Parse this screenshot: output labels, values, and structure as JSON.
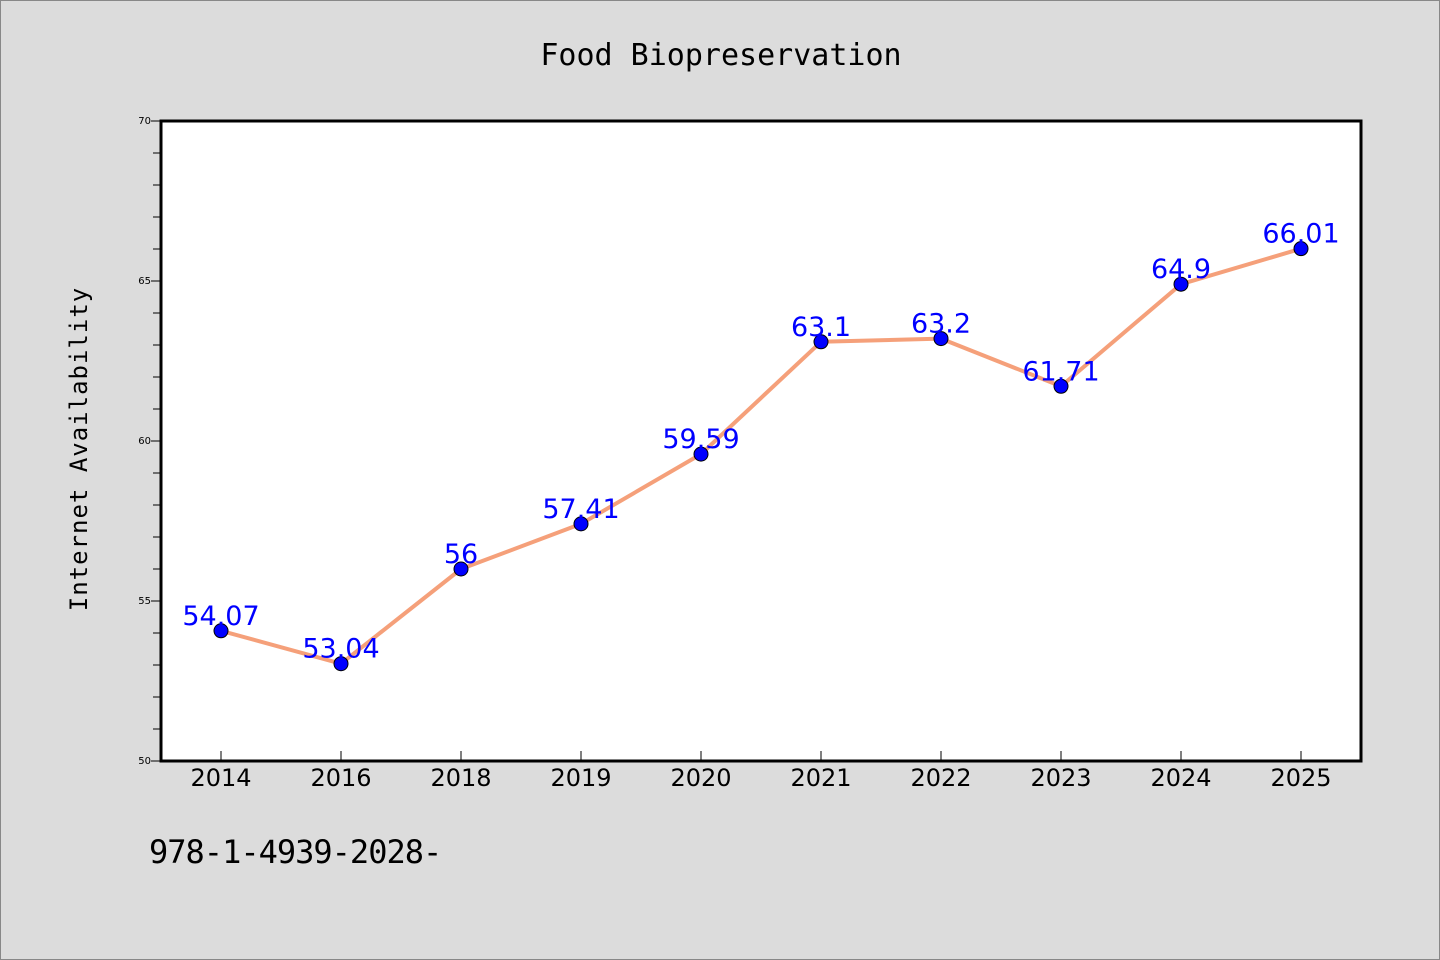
{
  "chart_data": {
    "type": "line",
    "title": "Food Biopreservation",
    "xlabel": "",
    "ylabel": "Internet Availability",
    "categories": [
      "2014",
      "2016",
      "2018",
      "2019",
      "2020",
      "2021",
      "2022",
      "2023",
      "2024",
      "2025"
    ],
    "series": [
      {
        "values": [
          54.07,
          53.04,
          56,
          57.41,
          59.59,
          63.1,
          63.2,
          61.71,
          64.9,
          66.01
        ],
        "data_labels": [
          "54.07",
          "53.04",
          "56",
          "57.41",
          "59.59",
          "63.1",
          "63.2",
          "61.71",
          "64.9",
          "66.01"
        ]
      }
    ],
    "ylim": [
      50,
      70
    ],
    "yticks": [
      "50",
      "55",
      "60",
      "65",
      "70"
    ],
    "grid": false,
    "legend": "none"
  },
  "colors": {
    "line": "#f5a07a",
    "marker": "#0000ff",
    "data_label": "#0000ff",
    "plot_bg": "#ffffff",
    "page_bg": "#dcdcdc"
  },
  "caption": "978-1-4939-2028-"
}
